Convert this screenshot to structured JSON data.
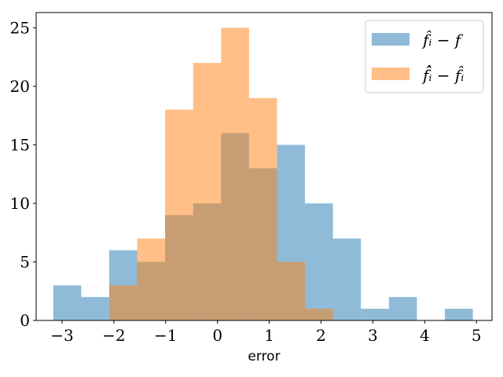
{
  "chart_data": {
    "type": "bar",
    "xlabel": "error",
    "ylabel": "",
    "xlim": [
      -3.5,
      5.3
    ],
    "ylim": [
      0,
      26.3
    ],
    "xticks": [
      -3,
      -2,
      -1,
      0,
      1,
      2,
      3,
      4,
      5
    ],
    "xtick_labels": [
      "−3",
      "−2",
      "−1",
      "0",
      "1",
      "2",
      "3",
      "4",
      "5"
    ],
    "yticks": [
      0,
      5,
      10,
      15,
      20,
      25
    ],
    "ytick_labels": [
      "0",
      "5",
      "10",
      "15",
      "20",
      "25"
    ],
    "grid": false,
    "legend_position": "top-right",
    "series": [
      {
        "name": "f̂ᵢ − f",
        "color": "#1f77b4",
        "opacity": 0.5,
        "bins": [
          {
            "x0": -3.17,
            "x1": -2.63,
            "count": 3
          },
          {
            "x0": -2.63,
            "x1": -2.09,
            "count": 2
          },
          {
            "x0": -2.09,
            "x1": -1.55,
            "count": 6
          },
          {
            "x0": -1.55,
            "x1": -1.01,
            "count": 5
          },
          {
            "x0": -1.01,
            "x1": -0.47,
            "count": 9
          },
          {
            "x0": -0.47,
            "x1": 0.07,
            "count": 10
          },
          {
            "x0": 0.07,
            "x1": 0.61,
            "count": 16
          },
          {
            "x0": 0.61,
            "x1": 1.15,
            "count": 13
          },
          {
            "x0": 1.15,
            "x1": 1.69,
            "count": 15
          },
          {
            "x0": 1.69,
            "x1": 2.23,
            "count": 10
          },
          {
            "x0": 2.23,
            "x1": 2.77,
            "count": 7
          },
          {
            "x0": 2.77,
            "x1": 3.31,
            "count": 1
          },
          {
            "x0": 3.31,
            "x1": 3.85,
            "count": 2
          },
          {
            "x0": 3.85,
            "x1": 4.39,
            "count": 0
          },
          {
            "x0": 4.39,
            "x1": 4.93,
            "count": 1
          }
        ]
      },
      {
        "name": "f̂̂ᵢ − f̂ᵢ",
        "color": "#ff7f0e",
        "opacity": 0.5,
        "bins": [
          {
            "x0": -2.09,
            "x1": -1.55,
            "count": 3
          },
          {
            "x0": -1.55,
            "x1": -1.01,
            "count": 7
          },
          {
            "x0": -1.01,
            "x1": -0.47,
            "count": 18
          },
          {
            "x0": -0.47,
            "x1": 0.07,
            "count": 22
          },
          {
            "x0": 0.07,
            "x1": 0.61,
            "count": 25
          },
          {
            "x0": 0.61,
            "x1": 1.15,
            "count": 19
          },
          {
            "x0": 1.15,
            "x1": 1.69,
            "count": 5
          },
          {
            "x0": 1.69,
            "x1": 2.23,
            "count": 1
          }
        ]
      }
    ]
  }
}
